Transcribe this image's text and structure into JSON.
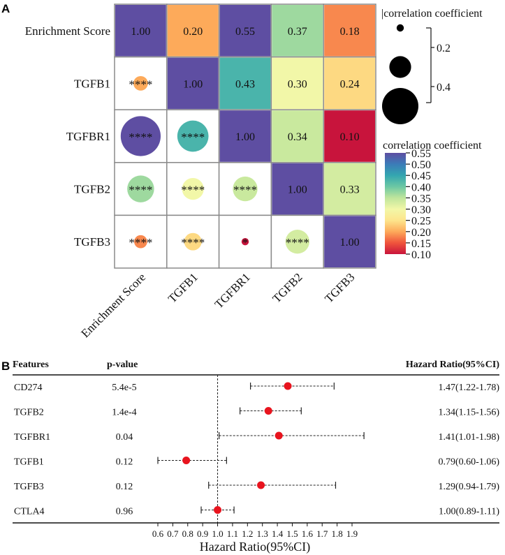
{
  "panels": [
    {
      "label": "A"
    },
    {
      "label": "B"
    }
  ],
  "chart_data": [
    {
      "type": "heatmap",
      "panel": "A",
      "variables": [
        "Enrichment Score",
        "TGFB1",
        "TGFBR1",
        "TGFB2",
        "TGFB3"
      ],
      "upper": [
        {
          "row": 0,
          "col": 0,
          "value": 1.0,
          "label": "1.00"
        },
        {
          "row": 0,
          "col": 1,
          "value": 0.2,
          "label": "0.20"
        },
        {
          "row": 0,
          "col": 2,
          "value": 0.55,
          "label": "0.55"
        },
        {
          "row": 0,
          "col": 3,
          "value": 0.37,
          "label": "0.37"
        },
        {
          "row": 0,
          "col": 4,
          "value": 0.18,
          "label": "0.18"
        },
        {
          "row": 1,
          "col": 1,
          "value": 1.0,
          "label": "1.00"
        },
        {
          "row": 1,
          "col": 2,
          "value": 0.43,
          "label": "0.43"
        },
        {
          "row": 1,
          "col": 3,
          "value": 0.3,
          "label": "0.30"
        },
        {
          "row": 1,
          "col": 4,
          "value": 0.24,
          "label": "0.24"
        },
        {
          "row": 2,
          "col": 2,
          "value": 1.0,
          "label": "1.00"
        },
        {
          "row": 2,
          "col": 3,
          "value": 0.34,
          "label": "0.34"
        },
        {
          "row": 2,
          "col": 4,
          "value": 0.1,
          "label": "0.10"
        },
        {
          "row": 3,
          "col": 3,
          "value": 1.0,
          "label": "1.00"
        },
        {
          "row": 3,
          "col": 4,
          "value": 0.33,
          "label": "0.33"
        },
        {
          "row": 4,
          "col": 4,
          "value": 1.0,
          "label": "1.00"
        }
      ],
      "lower": [
        {
          "row": 1,
          "col": 0,
          "value": 0.2,
          "stars": "****"
        },
        {
          "row": 2,
          "col": 0,
          "value": 0.55,
          "stars": "****"
        },
        {
          "row": 2,
          "col": 1,
          "value": 0.43,
          "stars": "****"
        },
        {
          "row": 3,
          "col": 0,
          "value": 0.37,
          "stars": "****"
        },
        {
          "row": 3,
          "col": 1,
          "value": 0.3,
          "stars": "****"
        },
        {
          "row": 3,
          "col": 2,
          "value": 0.34,
          "stars": "****"
        },
        {
          "row": 4,
          "col": 0,
          "value": 0.18,
          "stars": "****"
        },
        {
          "row": 4,
          "col": 1,
          "value": 0.24,
          "stars": "****"
        },
        {
          "row": 4,
          "col": 2,
          "value": 0.1,
          "stars": "*"
        },
        {
          "row": 4,
          "col": 3,
          "value": 0.33,
          "stars": "****"
        }
      ],
      "size_legend": {
        "title": "|correlation coefficient",
        "ticks": [
          "0.2",
          "0.4"
        ],
        "sample_values": [
          0.1,
          0.3,
          0.5
        ]
      },
      "color_legend": {
        "title": "correlation coefficient",
        "range": [
          0.1,
          0.55
        ],
        "ticks": [
          "0.55",
          "0.50",
          "0.45",
          "0.40",
          "0.35",
          "0.30",
          "0.25",
          "0.20",
          "0.15",
          "0.10"
        ],
        "gradient": [
          "#c8143c",
          "#f0543c",
          "#fdaa5a",
          "#fde58c",
          "#f2f7a8",
          "#bfe59c",
          "#6cc8a4",
          "#34a6b0",
          "#3b7cb8",
          "#5e4ea2"
        ]
      }
    },
    {
      "type": "forest",
      "panel": "B",
      "headers": {
        "features": "Features",
        "pvalue": "p-value",
        "hr": "Hazard Ratio(95%CI)"
      },
      "rows": [
        {
          "feature": "CD274",
          "pvalue": "5.4e-5",
          "hr": 1.47,
          "low": 1.22,
          "high": 1.78,
          "label": "1.47(1.22-1.78)"
        },
        {
          "feature": "TGFB2",
          "pvalue": "1.4e-4",
          "hr": 1.34,
          "low": 1.15,
          "high": 1.56,
          "label": "1.34(1.15-1.56)"
        },
        {
          "feature": "TGFBR1",
          "pvalue": "0.04",
          "hr": 1.41,
          "low": 1.01,
          "high": 1.98,
          "label": "1.41(1.01-1.98)"
        },
        {
          "feature": "TGFB1",
          "pvalue": "0.12",
          "hr": 0.79,
          "low": 0.6,
          "high": 1.06,
          "label": "0.79(0.60-1.06)"
        },
        {
          "feature": "TGFB3",
          "pvalue": "0.12",
          "hr": 1.29,
          "low": 0.94,
          "high": 1.79,
          "label": "1.29(0.94-1.79)"
        },
        {
          "feature": "CTLA4",
          "pvalue": "0.96",
          "hr": 1.0,
          "low": 0.89,
          "high": 1.11,
          "label": "1.00(0.89-1.11)"
        }
      ],
      "xlim": [
        0.6,
        1.9
      ],
      "ticks": [
        "0.6",
        "0.7",
        "0.8",
        "0.9",
        "1.0",
        "1.1",
        "1.2",
        "1.3",
        "1.4",
        "1.5",
        "1.6",
        "1.7",
        "1.8",
        "1.9"
      ],
      "tick_values": [
        0.6,
        0.7,
        0.8,
        0.9,
        1.0,
        1.1,
        1.2,
        1.3,
        1.4,
        1.5,
        1.6,
        1.7,
        1.8,
        1.9
      ],
      "reference_line": 1.0,
      "xlabel": "Hazard Ratio(95%CI)",
      "point_color": "#e8141e"
    }
  ]
}
